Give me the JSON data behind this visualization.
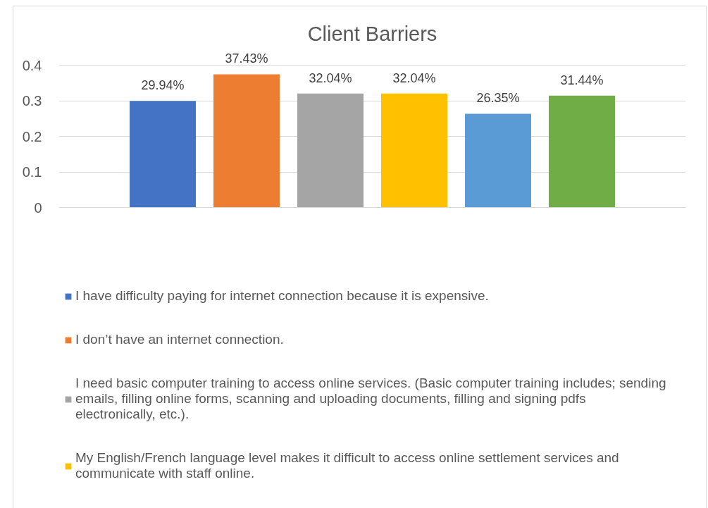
{
  "chart_data": {
    "type": "bar",
    "title": "Client Barriers",
    "categories": [
      null
    ],
    "series": [
      {
        "name": "I have difficulty paying for internet connection because it is expensive.",
        "color": "#4472c4",
        "values": [
          0.2994
        ],
        "value_labels": [
          "29.94%"
        ]
      },
      {
        "name": "I don’t have an internet connection.",
        "color": "#ed7d31",
        "values": [
          0.3743
        ],
        "value_labels": [
          "37.43%"
        ]
      },
      {
        "name": "I need basic computer training to access online services. (Basic computer training includes; sending emails, filling online forms, scanning and uploading documents, filling and signing pdfs electronically, etc.).",
        "color": "#a5a5a5",
        "values": [
          0.3204
        ],
        "value_labels": [
          "32.04%"
        ]
      },
      {
        "name": "My English/French language level makes it difficult to access online settlement services and communicate with staff online.",
        "color": "#ffc000",
        "values": [
          0.3204
        ],
        "value_labels": [
          "32.04%"
        ]
      },
      {
        "color": "#5b9bd5",
        "values": [
          0.2635
        ],
        "value_labels": [
          "26.35%"
        ]
      },
      {
        "color": "#70ad47",
        "values": [
          0.3144
        ],
        "value_labels": [
          "31.44%"
        ]
      }
    ],
    "ylim": [
      0,
      0.4
    ],
    "yticks": [
      0,
      0.1,
      0.2,
      0.3,
      0.4
    ],
    "grid": "y",
    "legend": "bottom",
    "tick_labels": "y"
  }
}
